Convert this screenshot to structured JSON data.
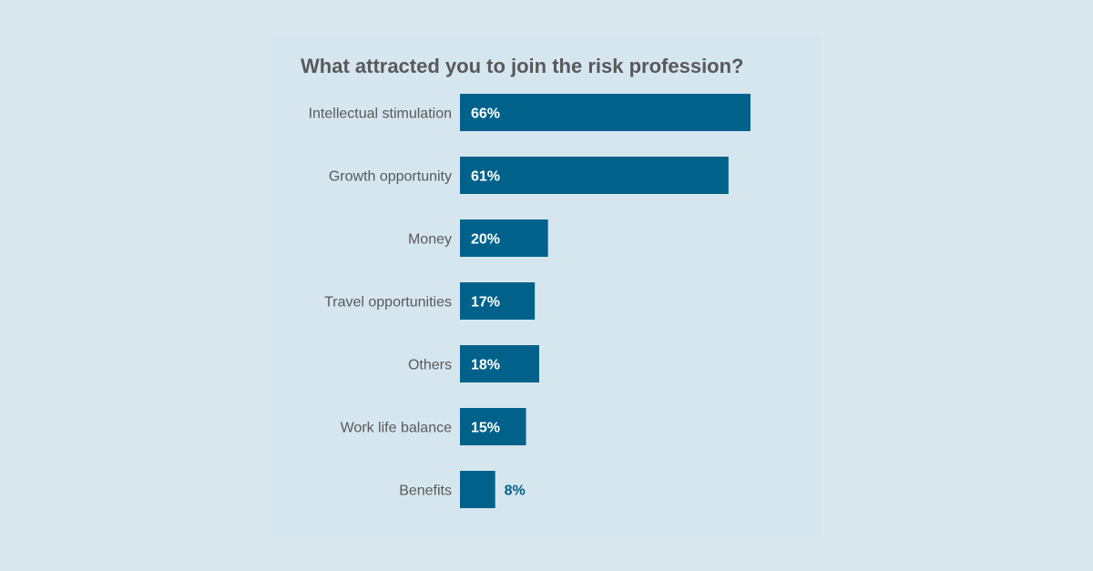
{
  "chart_data": {
    "type": "bar",
    "orientation": "horizontal",
    "title": "What attracted you to join the risk profession?",
    "categories": [
      "Intellectual stimulation",
      "Growth opportunity",
      "Money",
      "Travel opportunities",
      "Others",
      "Work life balance",
      "Benefits"
    ],
    "values": [
      66,
      61,
      20,
      17,
      18,
      15,
      8
    ],
    "value_labels": [
      "66%",
      "61%",
      "20%",
      "17%",
      "18%",
      "15%",
      "8%"
    ],
    "unit": "%",
    "xlim": [
      0,
      100
    ],
    "grid": false,
    "legend": "none",
    "colors": {
      "bar": "#00628b",
      "label_inside": "#ffffff",
      "label_outside": "#00628b",
      "text": "#58595b",
      "background": "#dbe7ee",
      "panel": "#d6e6ef"
    }
  }
}
